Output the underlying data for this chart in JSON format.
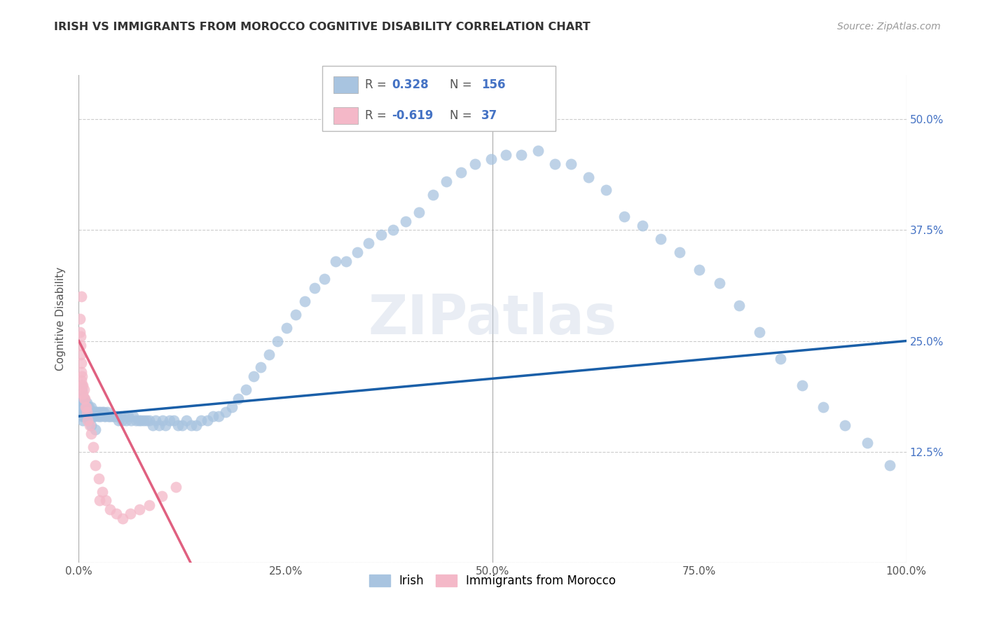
{
  "title": "IRISH VS IMMIGRANTS FROM MOROCCO COGNITIVE DISABILITY CORRELATION CHART",
  "source": "Source: ZipAtlas.com",
  "ylabel": "Cognitive Disability",
  "r_irish": 0.328,
  "n_irish": 156,
  "r_morocco": -0.619,
  "n_morocco": 37,
  "xlim": [
    0.0,
    1.0
  ],
  "ylim": [
    0.0,
    0.55
  ],
  "xticks": [
    0.0,
    0.25,
    0.5,
    0.75,
    1.0
  ],
  "xtick_labels": [
    "0.0%",
    "25.0%",
    "50.0%",
    "75.0%",
    "100.0%"
  ],
  "yticks": [
    0.0,
    0.125,
    0.25,
    0.375,
    0.5
  ],
  "ytick_labels": [
    "",
    "12.5%",
    "25.0%",
    "37.5%",
    "50.0%"
  ],
  "color_irish": "#a8c4e0",
  "color_morocco": "#f4b8c8",
  "line_color_irish": "#1a5fa8",
  "line_color_morocco": "#e06080",
  "watermark": "ZIPatlas",
  "legend_r_irish": "0.328",
  "legend_n_irish": "156",
  "legend_r_morocco": "-0.619",
  "legend_n_morocco": "37",
  "irish_x": [
    0.001,
    0.001,
    0.002,
    0.002,
    0.002,
    0.003,
    0.003,
    0.003,
    0.003,
    0.004,
    0.004,
    0.004,
    0.004,
    0.005,
    0.005,
    0.005,
    0.005,
    0.006,
    0.006,
    0.006,
    0.006,
    0.007,
    0.007,
    0.007,
    0.008,
    0.008,
    0.008,
    0.009,
    0.009,
    0.01,
    0.01,
    0.01,
    0.011,
    0.011,
    0.012,
    0.012,
    0.013,
    0.013,
    0.014,
    0.014,
    0.015,
    0.015,
    0.016,
    0.016,
    0.017,
    0.018,
    0.018,
    0.019,
    0.02,
    0.021,
    0.022,
    0.023,
    0.024,
    0.025,
    0.026,
    0.027,
    0.028,
    0.03,
    0.031,
    0.032,
    0.034,
    0.035,
    0.037,
    0.038,
    0.04,
    0.042,
    0.044,
    0.046,
    0.048,
    0.05,
    0.052,
    0.055,
    0.057,
    0.06,
    0.063,
    0.066,
    0.069,
    0.072,
    0.075,
    0.078,
    0.082,
    0.085,
    0.089,
    0.093,
    0.097,
    0.101,
    0.105,
    0.11,
    0.115,
    0.12,
    0.125,
    0.13,
    0.136,
    0.142,
    0.148,
    0.155,
    0.162,
    0.169,
    0.177,
    0.185,
    0.193,
    0.202,
    0.211,
    0.22,
    0.23,
    0.24,
    0.251,
    0.262,
    0.273,
    0.285,
    0.297,
    0.31,
    0.323,
    0.337,
    0.35,
    0.365,
    0.38,
    0.395,
    0.411,
    0.428,
    0.444,
    0.462,
    0.479,
    0.498,
    0.516,
    0.535,
    0.555,
    0.575,
    0.595,
    0.616,
    0.637,
    0.659,
    0.681,
    0.703,
    0.726,
    0.75,
    0.774,
    0.798,
    0.823,
    0.848,
    0.874,
    0.9,
    0.926,
    0.953,
    0.98,
    0.002,
    0.003,
    0.004,
    0.005,
    0.006,
    0.007,
    0.008,
    0.009,
    0.012,
    0.015,
    0.02
  ],
  "irish_y": [
    0.19,
    0.185,
    0.195,
    0.18,
    0.175,
    0.2,
    0.185,
    0.175,
    0.17,
    0.195,
    0.18,
    0.175,
    0.165,
    0.185,
    0.175,
    0.17,
    0.16,
    0.185,
    0.18,
    0.17,
    0.165,
    0.18,
    0.17,
    0.165,
    0.18,
    0.175,
    0.165,
    0.175,
    0.17,
    0.18,
    0.175,
    0.17,
    0.175,
    0.165,
    0.175,
    0.17,
    0.17,
    0.165,
    0.17,
    0.165,
    0.175,
    0.165,
    0.17,
    0.165,
    0.17,
    0.17,
    0.165,
    0.165,
    0.17,
    0.17,
    0.17,
    0.165,
    0.17,
    0.165,
    0.17,
    0.165,
    0.17,
    0.17,
    0.165,
    0.165,
    0.17,
    0.165,
    0.165,
    0.165,
    0.165,
    0.165,
    0.165,
    0.165,
    0.16,
    0.165,
    0.16,
    0.165,
    0.16,
    0.165,
    0.16,
    0.165,
    0.16,
    0.16,
    0.16,
    0.16,
    0.16,
    0.16,
    0.155,
    0.16,
    0.155,
    0.16,
    0.155,
    0.16,
    0.16,
    0.155,
    0.155,
    0.16,
    0.155,
    0.155,
    0.16,
    0.16,
    0.165,
    0.165,
    0.17,
    0.175,
    0.185,
    0.195,
    0.21,
    0.22,
    0.235,
    0.25,
    0.265,
    0.28,
    0.295,
    0.31,
    0.32,
    0.34,
    0.34,
    0.35,
    0.36,
    0.37,
    0.375,
    0.385,
    0.395,
    0.415,
    0.43,
    0.44,
    0.45,
    0.455,
    0.46,
    0.46,
    0.465,
    0.45,
    0.45,
    0.435,
    0.42,
    0.39,
    0.38,
    0.365,
    0.35,
    0.33,
    0.315,
    0.29,
    0.26,
    0.23,
    0.2,
    0.175,
    0.155,
    0.135,
    0.11,
    0.19,
    0.185,
    0.18,
    0.175,
    0.17,
    0.17,
    0.165,
    0.165,
    0.16,
    0.155,
    0.15
  ],
  "morocco_x": [
    0.001,
    0.001,
    0.002,
    0.002,
    0.002,
    0.003,
    0.003,
    0.003,
    0.004,
    0.004,
    0.004,
    0.005,
    0.005,
    0.006,
    0.006,
    0.007,
    0.008,
    0.009,
    0.01,
    0.011,
    0.013,
    0.015,
    0.017,
    0.02,
    0.024,
    0.028,
    0.033,
    0.038,
    0.045,
    0.053,
    0.062,
    0.073,
    0.085,
    0.1,
    0.117,
    0.003,
    0.025
  ],
  "morocco_y": [
    0.275,
    0.26,
    0.255,
    0.245,
    0.235,
    0.225,
    0.215,
    0.205,
    0.21,
    0.2,
    0.19,
    0.2,
    0.19,
    0.195,
    0.185,
    0.185,
    0.175,
    0.175,
    0.17,
    0.16,
    0.155,
    0.145,
    0.13,
    0.11,
    0.095,
    0.08,
    0.07,
    0.06,
    0.055,
    0.05,
    0.055,
    0.06,
    0.065,
    0.075,
    0.085,
    0.3,
    0.07
  ],
  "irish_line_x": [
    0.0,
    1.0
  ],
  "irish_line_y": [
    0.165,
    0.25
  ],
  "morocco_line_x": [
    0.0,
    0.135
  ],
  "morocco_line_y": [
    0.25,
    0.0
  ]
}
